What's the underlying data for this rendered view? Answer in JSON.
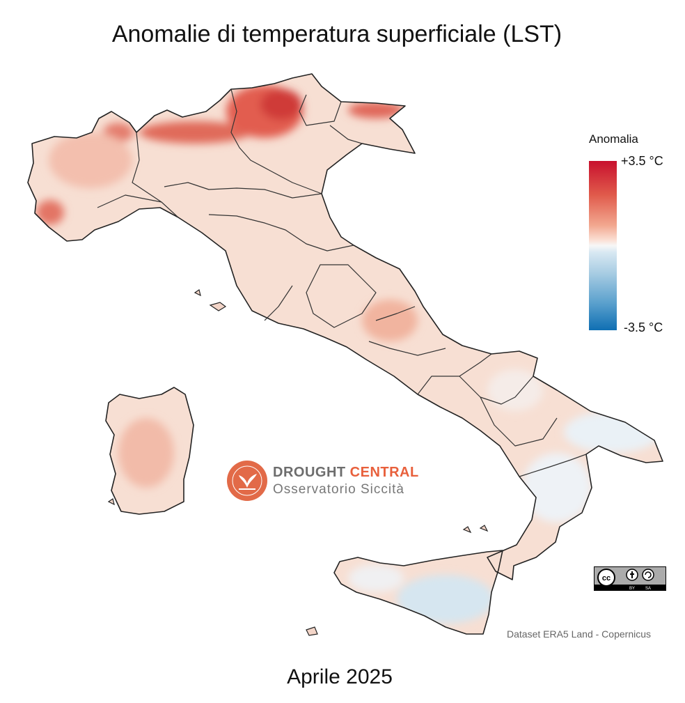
{
  "title": "Anomalie di temperatura superficiale (LST)",
  "subtitle": "Aprile 2025",
  "legend": {
    "title": "Anomalia",
    "max_label": "+3.5 °C",
    "min_label": "-3.5 °C",
    "colors": [
      "#c8102e",
      "#f7f7f7",
      "#0f6fb3"
    ]
  },
  "source": "Dataset ERA5 Land - Copernicus",
  "logo": {
    "word1": "DROUGHT",
    "word2": "CENTRAL",
    "tagline": "Osservatorio Siccità"
  },
  "license": {
    "badge": "CC BY SA",
    "parts": [
      "BY",
      "SA"
    ]
  }
}
